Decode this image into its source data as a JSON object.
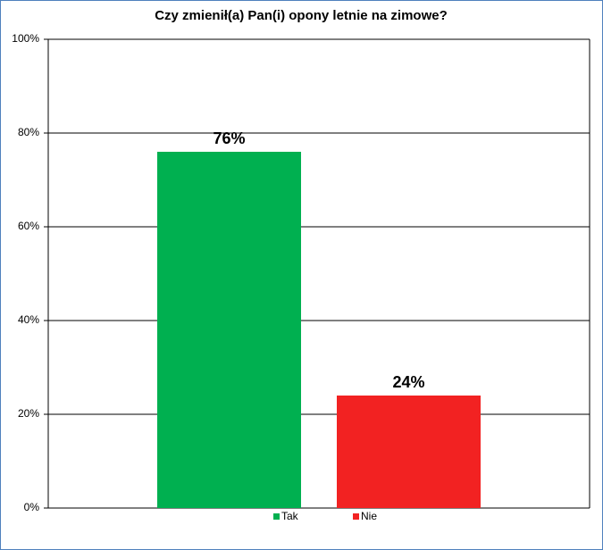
{
  "chart_data": {
    "type": "bar",
    "title": "Czy zmienił(a) Pan(i) opony letnie na zimowe?",
    "categories": [
      null
    ],
    "series": [
      {
        "name": "Tak",
        "color": "#00b050",
        "values": [
          76
        ],
        "value_labels": [
          "76%"
        ]
      },
      {
        "name": "Nie",
        "color": "#f22222",
        "values": [
          24
        ],
        "value_labels": [
          "24%"
        ]
      }
    ],
    "ylim": [
      0,
      100
    ],
    "yticks": [
      {
        "value": 0,
        "label": "0%"
      },
      {
        "value": 20,
        "label": "20%"
      },
      {
        "value": 40,
        "label": "40%"
      },
      {
        "value": 60,
        "label": "60%"
      },
      {
        "value": 80,
        "label": "80%"
      },
      {
        "value": 100,
        "label": "100%"
      }
    ],
    "grid": true,
    "legend": "bottom"
  }
}
